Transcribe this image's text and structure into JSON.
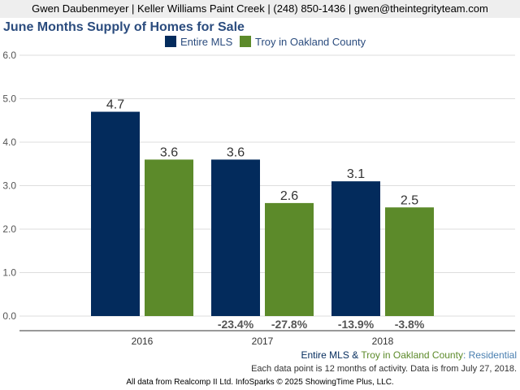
{
  "header": {
    "contact": "Gwen Daubenmeyer | Keller Williams Paint Creek | (248) 850-1436 | gwen@theintegrityteam.com"
  },
  "chart_data": {
    "type": "bar",
    "title": "June Months Supply of Homes for Sale",
    "categories": [
      "2016",
      "2017",
      "2018"
    ],
    "series": [
      {
        "name": "Entire MLS",
        "values": [
          4.7,
          3.6,
          3.1
        ],
        "value_labels": [
          "4.7",
          "3.6",
          "3.1"
        ],
        "change_labels": [
          "",
          "-23.4%",
          "-13.9%"
        ],
        "color": "#032b5c"
      },
      {
        "name": "Troy in Oakland County",
        "values": [
          3.6,
          2.6,
          2.5
        ],
        "value_labels": [
          "3.6",
          "2.6",
          "2.5"
        ],
        "change_labels": [
          "",
          "-27.8%",
          "-3.8%"
        ],
        "color": "#5c8a2a"
      }
    ],
    "ylim": [
      0,
      6
    ],
    "yticks": [
      "0.0",
      "1.0",
      "2.0",
      "3.0",
      "4.0",
      "5.0",
      "6.0"
    ],
    "grid": true,
    "legend_position": "top"
  },
  "footer": {
    "series_caption": {
      "part1": "Entire MLS",
      "part2": " & ",
      "part3": "Troy in Oakland County",
      "part4": ": Residential"
    },
    "note": "Each data point is 12 months of activity. Data is from July 27, 2018.",
    "source": "All data from Realcomp II Ltd. InfoSparks © 2025 ShowingTime Plus, LLC."
  },
  "colors": {
    "caption_blue": "#032b5c",
    "caption_green": "#5c8a2a",
    "caption_lightblue": "#4a7fb0"
  }
}
